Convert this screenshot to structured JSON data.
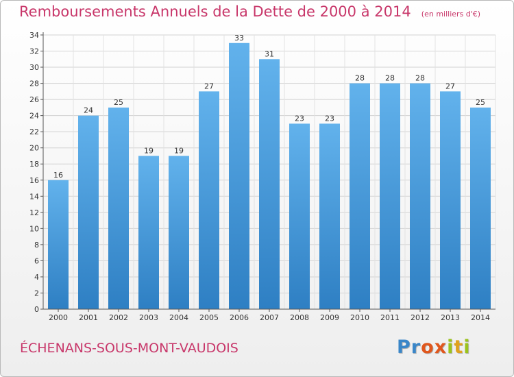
{
  "header": {
    "title": "Remboursements Annuels de la Dette de 2000 à 2014",
    "subtitle": "(en milliers d'€)"
  },
  "footer": {
    "place": "ÉCHENANS-SOUS-MONT-VAUDOIS",
    "logo_text": "Proxiti"
  },
  "colors": {
    "bar_top": "#62b2ec",
    "bar_bottom": "#2e7fc3",
    "title": "#c8376a"
  },
  "chart_data": {
    "type": "bar",
    "title": "Remboursements Annuels de la Dette de 2000 à 2014",
    "subtitle": "(en milliers d'€)",
    "categories": [
      "2000",
      "2001",
      "2002",
      "2003",
      "2004",
      "2005",
      "2006",
      "2007",
      "2008",
      "2009",
      "2010",
      "2011",
      "2012",
      "2013",
      "2014"
    ],
    "values": [
      16,
      24,
      25,
      19,
      19,
      27,
      33,
      31,
      23,
      23,
      28,
      28,
      28,
      27,
      25
    ],
    "ylim": [
      0,
      34
    ],
    "yticks": [
      0,
      2,
      4,
      6,
      8,
      10,
      12,
      14,
      16,
      18,
      20,
      22,
      24,
      26,
      28,
      30,
      32,
      34
    ],
    "grid": true,
    "data_labels": true
  }
}
